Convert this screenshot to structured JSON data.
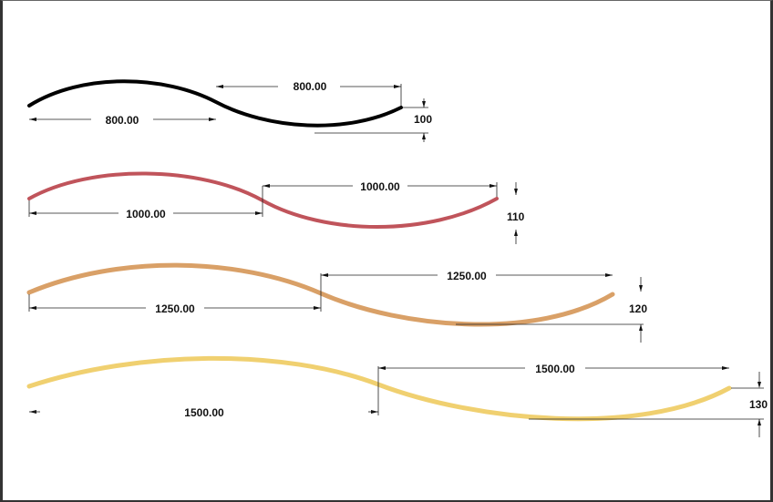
{
  "curves": [
    {
      "color": "#000000",
      "span_left_label": "800.00",
      "span_right_label": "800.00",
      "height_label": "100"
    },
    {
      "color": "#c0545b",
      "span_left_label": "1000.00",
      "span_right_label": "1000.00",
      "height_label": "110"
    },
    {
      "color": "#d9a067",
      "span_left_label": "1250.00",
      "span_right_label": "1250.00",
      "height_label": "120"
    },
    {
      "color": "#f0d070",
      "span_left_label": "1500.00",
      "span_right_label": "1500.00",
      "height_label": "130"
    }
  ]
}
